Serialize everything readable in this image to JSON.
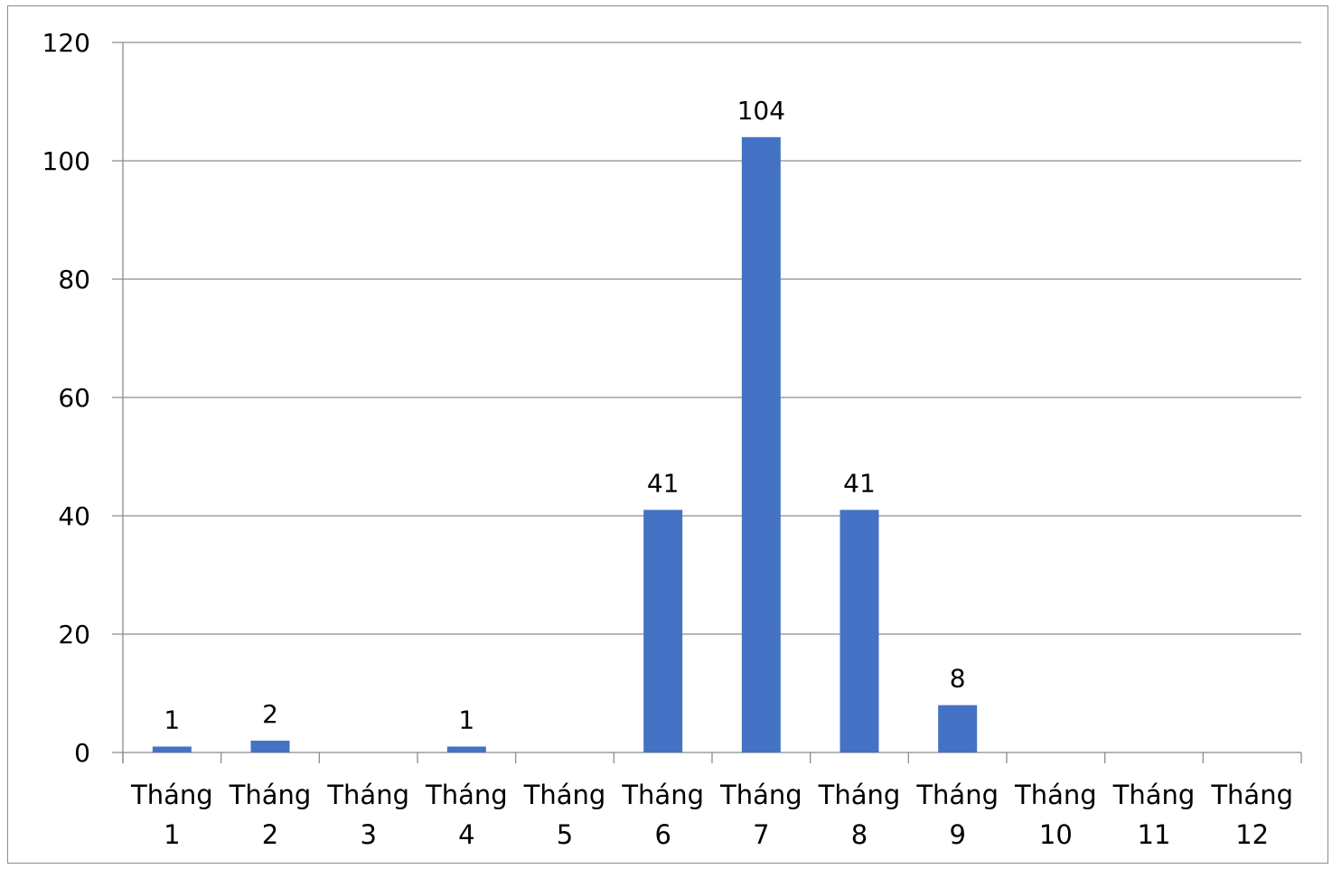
{
  "chart_data": {
    "type": "bar",
    "categories": [
      "Tháng 1",
      "Tháng 2",
      "Tháng 3",
      "Tháng 4",
      "Tháng 5",
      "Tháng 6",
      "Tháng 7",
      "Tháng 8",
      "Tháng 9",
      "Tháng 10",
      "Tháng 11",
      "Tháng 12"
    ],
    "category_lines": [
      [
        "Tháng",
        "1"
      ],
      [
        "Tháng",
        "2"
      ],
      [
        "Tháng",
        "3"
      ],
      [
        "Tháng",
        "4"
      ],
      [
        "Tháng",
        "5"
      ],
      [
        "Tháng",
        "6"
      ],
      [
        "Tháng",
        "7"
      ],
      [
        "Tháng",
        "8"
      ],
      [
        "Tháng",
        "9"
      ],
      [
        "Tháng",
        "10"
      ],
      [
        "Tháng",
        "11"
      ],
      [
        "Tháng",
        "12"
      ]
    ],
    "values": [
      1,
      2,
      0,
      1,
      0,
      41,
      104,
      41,
      8,
      0,
      0,
      0
    ],
    "data_labels": [
      "1",
      "2",
      "",
      "1",
      "",
      "41",
      "104",
      "41",
      "8",
      "",
      "",
      ""
    ],
    "ylim": [
      0,
      120
    ],
    "yticks": [
      0,
      20,
      40,
      60,
      80,
      100,
      120
    ],
    "ytick_labels": [
      "0",
      "20",
      "40",
      "60",
      "80",
      "100",
      "120"
    ],
    "grid": true,
    "bar_color": "#4472C4",
    "title": "",
    "xlabel": "",
    "ylabel": ""
  }
}
